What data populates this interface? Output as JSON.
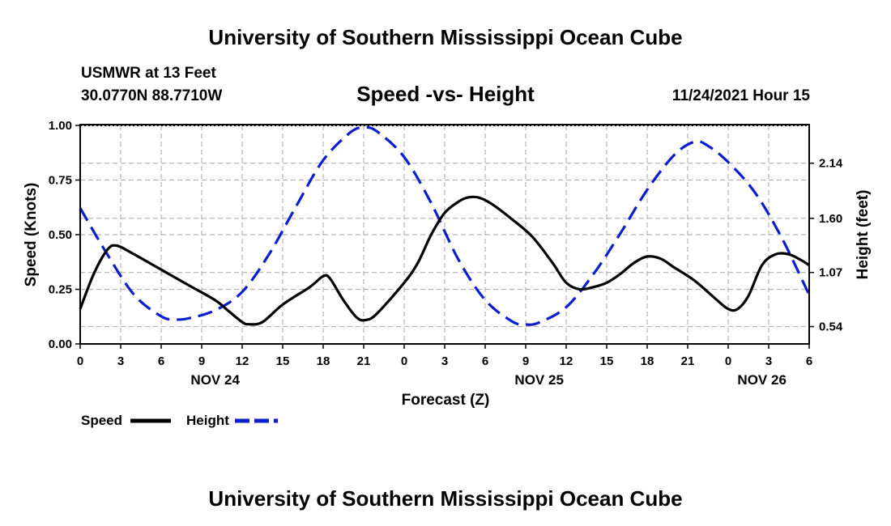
{
  "header": {
    "title": "University of Southern Mississippi Ocean Cube",
    "station": "USMWR at 13 Feet",
    "coords": "30.0770N  88.7710W",
    "date": "11/24/2021 Hour 15",
    "footer_title": "University of Southern Mississippi Ocean Cube"
  },
  "chart_data": {
    "type": "line",
    "title": "Speed -vs- Height",
    "xlabel": "Forecast (Z)",
    "ylabel": "Speed (Knots)",
    "ylabel_right": "Height (feet)",
    "x_range": [
      0,
      54
    ],
    "ylim": [
      0,
      1
    ],
    "ylim_right": [
      0.37,
      2.51
    ],
    "x_ticks": [
      {
        "x": 0,
        "label": "0"
      },
      {
        "x": 3,
        "label": "3"
      },
      {
        "x": 6,
        "label": "6"
      },
      {
        "x": 9,
        "label": "9"
      },
      {
        "x": 12,
        "label": "12"
      },
      {
        "x": 15,
        "label": "15"
      },
      {
        "x": 18,
        "label": "18"
      },
      {
        "x": 21,
        "label": "21"
      },
      {
        "x": 24,
        "label": "0"
      },
      {
        "x": 27,
        "label": "3"
      },
      {
        "x": 30,
        "label": "6"
      },
      {
        "x": 33,
        "label": "9"
      },
      {
        "x": 36,
        "label": "12"
      },
      {
        "x": 39,
        "label": "15"
      },
      {
        "x": 42,
        "label": "18"
      },
      {
        "x": 45,
        "label": "21"
      },
      {
        "x": 48,
        "label": "0"
      },
      {
        "x": 51,
        "label": "3"
      },
      {
        "x": 54,
        "label": "6"
      }
    ],
    "date_labels": [
      {
        "x": 10,
        "label": "NOV 24"
      },
      {
        "x": 34,
        "label": "NOV 25"
      },
      {
        "x": 50.5,
        "label": "NOV 26"
      }
    ],
    "y_ticks": [
      {
        "v": 0,
        "label": "0.00"
      },
      {
        "v": 0.25,
        "label": "0.25"
      },
      {
        "v": 0.5,
        "label": "0.50"
      },
      {
        "v": 0.75,
        "label": "0.75"
      },
      {
        "v": 1,
        "label": "1.00"
      }
    ],
    "y_ticks_right": [
      {
        "v": 0.54,
        "label": "0.54"
      },
      {
        "v": 1.07,
        "label": "1.07"
      },
      {
        "v": 1.6,
        "label": "1.60"
      },
      {
        "v": 2.14,
        "label": "2.14"
      }
    ],
    "grid": true,
    "series": [
      {
        "name": "Speed",
        "axis": "left",
        "color": "#000000",
        "dash": "solid",
        "points": [
          [
            0,
            0.16
          ],
          [
            1,
            0.32
          ],
          [
            2,
            0.43
          ],
          [
            2.7,
            0.45
          ],
          [
            4,
            0.41
          ],
          [
            6,
            0.34
          ],
          [
            8,
            0.27
          ],
          [
            10,
            0.2
          ],
          [
            11,
            0.15
          ],
          [
            12,
            0.1
          ],
          [
            12.5,
            0.09
          ],
          [
            13.5,
            0.1
          ],
          [
            15,
            0.18
          ],
          [
            17,
            0.26
          ],
          [
            18,
            0.31
          ],
          [
            18.5,
            0.3
          ],
          [
            19.5,
            0.2
          ],
          [
            20.5,
            0.12
          ],
          [
            21.2,
            0.11
          ],
          [
            22,
            0.14
          ],
          [
            24,
            0.28
          ],
          [
            25,
            0.37
          ],
          [
            26,
            0.5
          ],
          [
            27,
            0.6
          ],
          [
            28,
            0.65
          ],
          [
            28.7,
            0.67
          ],
          [
            29.5,
            0.67
          ],
          [
            30.5,
            0.64
          ],
          [
            32,
            0.57
          ],
          [
            33.5,
            0.49
          ],
          [
            35,
            0.37
          ],
          [
            36,
            0.28
          ],
          [
            37,
            0.25
          ],
          [
            38,
            0.26
          ],
          [
            39,
            0.28
          ],
          [
            40,
            0.32
          ],
          [
            41,
            0.37
          ],
          [
            42,
            0.4
          ],
          [
            43,
            0.39
          ],
          [
            44,
            0.35
          ],
          [
            45.5,
            0.29
          ],
          [
            47,
            0.21
          ],
          [
            48,
            0.16
          ],
          [
            48.7,
            0.16
          ],
          [
            49.5,
            0.22
          ],
          [
            50.5,
            0.36
          ],
          [
            51.5,
            0.41
          ],
          [
            52.5,
            0.41
          ],
          [
            53.5,
            0.38
          ],
          [
            54,
            0.36
          ]
        ]
      },
      {
        "name": "Height",
        "axis": "right",
        "color": "#0b1ecc",
        "dash": "dashed",
        "points": [
          [
            0,
            1.7
          ],
          [
            2,
            1.25
          ],
          [
            4,
            0.85
          ],
          [
            6,
            0.64
          ],
          [
            7,
            0.61
          ],
          [
            8,
            0.62
          ],
          [
            10,
            0.7
          ],
          [
            12,
            0.88
          ],
          [
            14,
            1.25
          ],
          [
            16,
            1.72
          ],
          [
            18,
            2.17
          ],
          [
            20,
            2.44
          ],
          [
            21,
            2.49
          ],
          [
            22,
            2.45
          ],
          [
            24,
            2.2
          ],
          [
            26,
            1.75
          ],
          [
            28,
            1.2
          ],
          [
            30,
            0.8
          ],
          [
            32,
            0.59
          ],
          [
            33,
            0.56
          ],
          [
            34,
            0.58
          ],
          [
            36,
            0.73
          ],
          [
            38,
            1.05
          ],
          [
            40,
            1.45
          ],
          [
            42,
            1.88
          ],
          [
            44,
            2.22
          ],
          [
            45.5,
            2.35
          ],
          [
            46.5,
            2.31
          ],
          [
            48,
            2.15
          ],
          [
            50,
            1.85
          ],
          [
            52,
            1.4
          ],
          [
            54,
            0.85
          ]
        ]
      }
    ],
    "legend": [
      {
        "label": "Speed",
        "color": "#000000",
        "dash": "solid"
      },
      {
        "label": "Height",
        "color": "#0b1ecc",
        "dash": "dashed"
      }
    ]
  }
}
